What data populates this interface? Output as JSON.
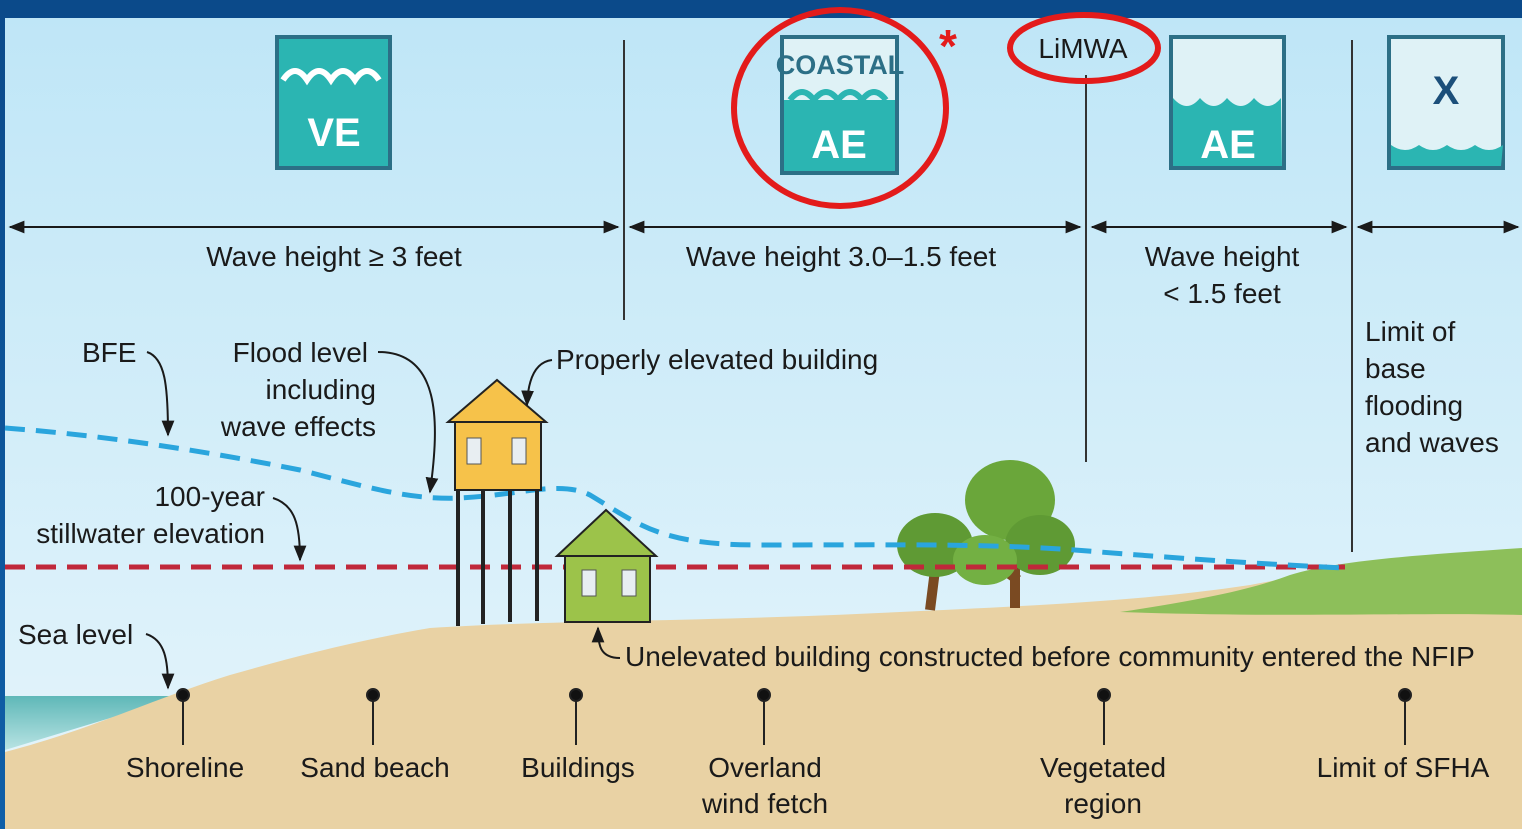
{
  "zones": [
    {
      "label": "VE"
    },
    {
      "top": "COASTAL",
      "label": "AE"
    },
    {
      "label": "AE"
    },
    {
      "label": "X"
    }
  ],
  "asterisk": "*",
  "limwa": "LiMWA",
  "wave_heights": [
    [
      "Wave height ≥ 3 feet"
    ],
    [
      "Wave height 3.0–1.5 feet"
    ],
    [
      "Wave height",
      "< 1.5 feet"
    ]
  ],
  "limit_text": [
    "Limit of",
    "base",
    "flooding",
    "and waves"
  ],
  "callouts": {
    "bfe": "BFE",
    "flood_level": [
      "Flood level",
      "including",
      "wave effects"
    ],
    "elevated": "Properly elevated building",
    "stillwater": [
      "100-year",
      "stillwater elevation"
    ],
    "sea_level": "Sea level",
    "unelevated": "Unelevated building constructed before community entered the NFIP"
  },
  "ground_labels": [
    [
      "Shoreline"
    ],
    [
      "Sand beach"
    ],
    [
      "Buildings"
    ],
    [
      "Overland",
      "wind fetch"
    ],
    [
      "Vegetated",
      "region"
    ],
    [
      "Limit of SFHA"
    ]
  ]
}
